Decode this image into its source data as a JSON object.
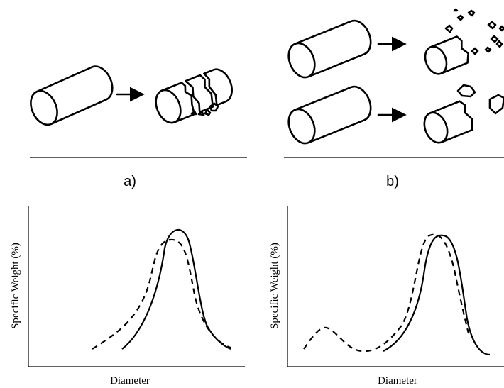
{
  "panels": [
    {
      "label": "a)"
    },
    {
      "label": "b)"
    }
  ],
  "plots": [
    {
      "y_label": "Specific Weight (%)",
      "x_label": "Diameter"
    },
    {
      "y_label": "Specific Weight (%)",
      "x_label": "Diameter"
    }
  ]
}
